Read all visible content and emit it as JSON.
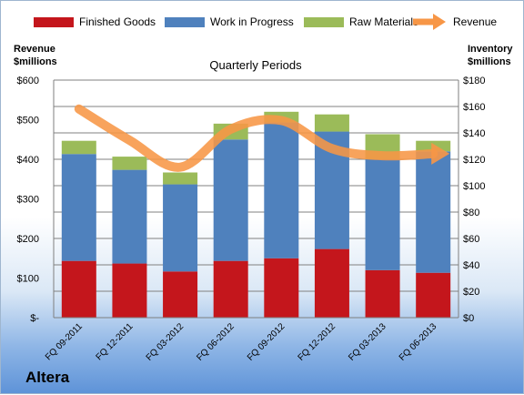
{
  "brand": "Altera",
  "colors": {
    "finished_goods": "#c4161c",
    "work_in_progress": "#4f81bd",
    "raw_materials": "#9bbb59",
    "revenue": "#f79646",
    "gridline": "#808080"
  },
  "chart_data": {
    "type": "bar",
    "stacked": true,
    "title": "Quarterly Periods",
    "categories": [
      "FQ 09-2011",
      "FQ 12-2011",
      "FQ 03-2012",
      "FQ 06-2012",
      "FQ 09-2012",
      "FQ 12-2012",
      "FQ 03-2013",
      "FQ 06-2013"
    ],
    "series": [
      {
        "name": "Finished Goods",
        "type": "bar",
        "axis": "right",
        "color": "#c4161c",
        "values": [
          43,
          41,
          35,
          43,
          45,
          52,
          36,
          34
        ]
      },
      {
        "name": "Work in Progress",
        "type": "bar",
        "axis": "right",
        "color": "#4f81bd",
        "values": [
          81,
          71,
          66,
          92,
          103,
          89,
          84,
          92
        ]
      },
      {
        "name": "Raw Materials",
        "type": "bar",
        "axis": "right",
        "color": "#9bbb59",
        "values": [
          10,
          10,
          9,
          12,
          8,
          13,
          19,
          8
        ]
      },
      {
        "name": "Revenue",
        "type": "line",
        "axis": "left",
        "color": "#f79646",
        "values": [
          527,
          448,
          380,
          476,
          498,
          427,
          409,
          414
        ]
      }
    ],
    "left_axis": {
      "label_line1": "Revenue",
      "label_line2": "$millions",
      "ylim": [
        0,
        600
      ],
      "tick_labels": [
        "$-",
        "$100",
        "$200",
        "$300",
        "$400",
        "$500",
        "$600"
      ]
    },
    "right_axis": {
      "label_line1": "Inventory",
      "label_line2": "$millions",
      "ylim": [
        0,
        180
      ],
      "tick_labels": [
        "$0",
        "$20",
        "$40",
        "$60",
        "$80",
        "$100",
        "$120",
        "$140",
        "$160",
        "$180"
      ]
    },
    "grid": true,
    "legend_position": "top"
  }
}
